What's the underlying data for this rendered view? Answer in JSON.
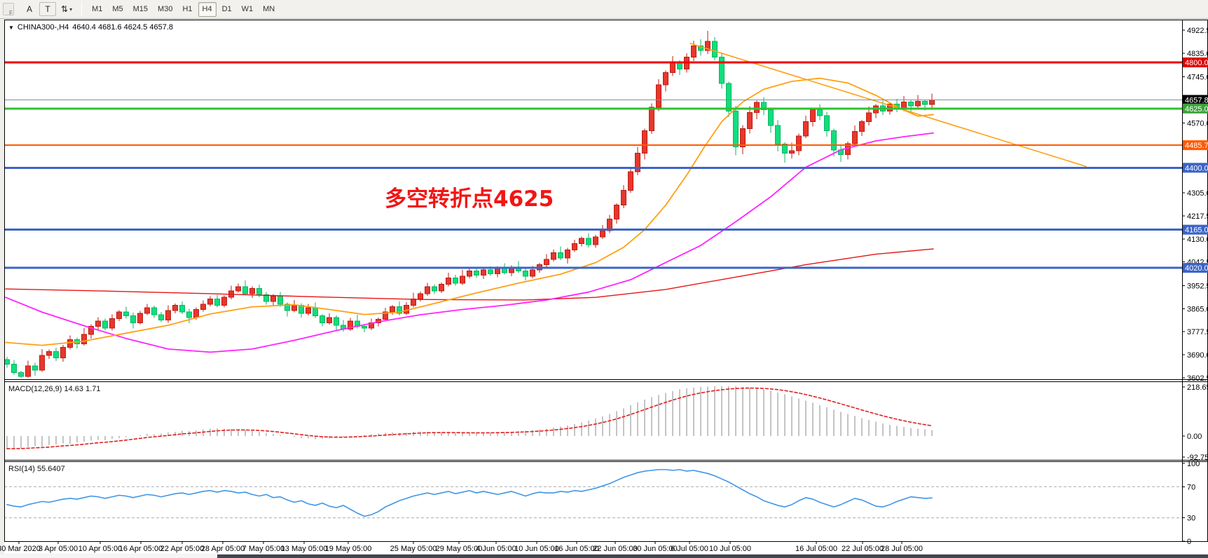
{
  "toolbar": {
    "handle_letter": "F",
    "icon_a": "A",
    "icon_t": "T",
    "icon_swap": "⇅",
    "caret": "▾",
    "timeframes": [
      "M1",
      "M5",
      "M15",
      "M30",
      "H1",
      "H4",
      "D1",
      "W1",
      "MN"
    ],
    "active_timeframe": "H4"
  },
  "chart": {
    "dropdown": "▼",
    "symbol": "CHINA300-,H4",
    "ohlc_text": "4640.4 4681.6 4624.5 4657.8"
  },
  "indicators": {
    "macd": {
      "label": "MACD(12,26,9)",
      "value_main": "14.63",
      "value_signal": "1.71"
    },
    "rsi": {
      "label": "RSI(14)",
      "value": "55.6407"
    }
  },
  "annotation": {
    "text": "多空转折点4625",
    "color": "#F21515"
  },
  "chart_data": {
    "type": "candlestick",
    "title": "CHINA300-,H4",
    "timeframe": "H4",
    "last_ohlc": {
      "open": 4640.4,
      "high": 4681.6,
      "low": 4624.5,
      "close": 4657.8
    },
    "price_axis": {
      "top": 4922.5,
      "bottom": 3602.5,
      "ticks": [
        4922.5,
        4835.0,
        4745.0,
        4570.0,
        4305.0,
        4217.5,
        4130.0,
        4042.5,
        3952.5,
        3865.0,
        3777.5,
        3690.0,
        3602.5
      ]
    },
    "levels": [
      {
        "price": 4800.0,
        "label": "4800.0",
        "color": "#F00000",
        "width": 3,
        "tag": "#E00000"
      },
      {
        "price": 4657.8,
        "label": "4657.8",
        "color": "#7E8C9C",
        "width": 1,
        "tag": "#000000"
      },
      {
        "price": 4625.0,
        "label": "4625.0",
        "color": "#2FC22F",
        "width": 3,
        "tag": "#3AA33A"
      },
      {
        "price": 4485.7,
        "label": "4485.7",
        "color": "#FF5A00",
        "width": 2,
        "tag": "#FF5A00"
      },
      {
        "price": 4400.0,
        "label": "4400.0",
        "color": "#3C64C8",
        "width": 3,
        "tag": "#3C64C8"
      },
      {
        "price": 4165.0,
        "label": "4165.0",
        "color": "#3C64C8",
        "width": 3,
        "tag": "#3C64C8"
      },
      {
        "price": 4020.0,
        "label": "4020.0",
        "color": "#3C64C8",
        "width": 3,
        "tag": "#3C64C8"
      }
    ],
    "colors": {
      "up": "#E8372C",
      "up_stroke": "#BC1E14",
      "down": "#10DF7C",
      "down_stroke": "#09B463",
      "ma_fast": "#FFA013",
      "ma_mid": "#FF22FF",
      "ma_slow": "#E81414",
      "trendline": "#FFA013",
      "macd_hist": "#C4C4C4",
      "macd_signal": "#E02020",
      "rsi_line": "#3E96E8"
    },
    "candles": [
      [
        3672,
        3682,
        3641,
        3655
      ],
      [
        3655,
        3671,
        3614,
        3622
      ],
      [
        3622,
        3629,
        3603,
        3608
      ],
      [
        3608,
        3668,
        3604,
        3648
      ],
      [
        3648,
        3660,
        3610,
        3632
      ],
      [
        3632,
        3712,
        3625,
        3688
      ],
      [
        3688,
        3710,
        3674,
        3702
      ],
      [
        3702,
        3717,
        3666,
        3678
      ],
      [
        3678,
        3728,
        3664,
        3718
      ],
      [
        3718,
        3764,
        3710,
        3748
      ],
      [
        3748,
        3755,
        3714,
        3732
      ],
      [
        3732,
        3792,
        3725,
        3768
      ],
      [
        3768,
        3806,
        3752,
        3798
      ],
      [
        3798,
        3833,
        3786,
        3818
      ],
      [
        3818,
        3828,
        3784,
        3792
      ],
      [
        3792,
        3844,
        3782,
        3828
      ],
      [
        3828,
        3859,
        3818,
        3852
      ],
      [
        3852,
        3872,
        3828,
        3838
      ],
      [
        3838,
        3850,
        3790,
        3812
      ],
      [
        3812,
        3856,
        3805,
        3848
      ],
      [
        3848,
        3883,
        3841,
        3868
      ],
      [
        3868,
        3876,
        3830,
        3842
      ],
      [
        3842,
        3852,
        3814,
        3822
      ],
      [
        3822,
        3878,
        3812,
        3858
      ],
      [
        3858,
        3885,
        3848,
        3878
      ],
      [
        3878,
        3893,
        3845,
        3852
      ],
      [
        3852,
        3864,
        3810,
        3832
      ],
      [
        3832,
        3870,
        3824,
        3862
      ],
      [
        3862,
        3897,
        3854,
        3882
      ],
      [
        3882,
        3912,
        3874,
        3902
      ],
      [
        3902,
        3918,
        3870,
        3878
      ],
      [
        3878,
        3915,
        3870,
        3908
      ],
      [
        3908,
        3952,
        3900,
        3932
      ],
      [
        3932,
        3960,
        3926,
        3948
      ],
      [
        3948,
        3972,
        3915,
        3922
      ],
      [
        3922,
        3950,
        3906,
        3942
      ],
      [
        3942,
        3957,
        3908,
        3918
      ],
      [
        3918,
        3928,
        3880,
        3892
      ],
      [
        3892,
        3920,
        3878,
        3912
      ],
      [
        3912,
        3928,
        3872,
        3882
      ],
      [
        3882,
        3889,
        3836,
        3858
      ],
      [
        3858,
        3898,
        3851,
        3878
      ],
      [
        3878,
        3886,
        3832,
        3848
      ],
      [
        3848,
        3883,
        3840,
        3868
      ],
      [
        3868,
        3888,
        3830,
        3838
      ],
      [
        3838,
        3845,
        3798,
        3812
      ],
      [
        3812,
        3848,
        3805,
        3832
      ],
      [
        3832,
        3839,
        3784,
        3802
      ],
      [
        3802,
        3822,
        3778,
        3788
      ],
      [
        3788,
        3830,
        3781,
        3818
      ],
      [
        3818,
        3842,
        3790,
        3798
      ],
      [
        3798,
        3806,
        3776,
        3792
      ],
      [
        3792,
        3827,
        3784,
        3812
      ],
      [
        3812,
        3832,
        3798,
        3825
      ],
      [
        3825,
        3868,
        3818,
        3852
      ],
      [
        3852,
        3879,
        3842,
        3872
      ],
      [
        3872,
        3892,
        3840,
        3848
      ],
      [
        3848,
        3890,
        3841,
        3878
      ],
      [
        3878,
        3926,
        3870,
        3902
      ],
      [
        3902,
        3930,
        3892,
        3922
      ],
      [
        3922,
        3963,
        3914,
        3948
      ],
      [
        3948,
        3958,
        3920,
        3932
      ],
      [
        3932,
        3965,
        3924,
        3958
      ],
      [
        3958,
        4002,
        3950,
        3982
      ],
      [
        3982,
        3994,
        3952,
        3962
      ],
      [
        3962,
        4012,
        3955,
        3988
      ],
      [
        3988,
        4016,
        3980,
        4008
      ],
      [
        4008,
        4023,
        3982,
        3992
      ],
      [
        3992,
        4022,
        3978,
        4012
      ],
      [
        4012,
        4026,
        3990,
        3998
      ],
      [
        3998,
        4025,
        3984,
        4018
      ],
      [
        4018,
        4038,
        3995,
        4002
      ],
      [
        4002,
        4030,
        3988,
        4022
      ],
      [
        4022,
        4046,
        4001,
        4008
      ],
      [
        4008,
        4016,
        3972,
        3988
      ],
      [
        3988,
        4027,
        3980,
        4012
      ],
      [
        4012,
        4039,
        4002,
        4032
      ],
      [
        4032,
        4072,
        4024,
        4052
      ],
      [
        4052,
        4090,
        4044,
        4078
      ],
      [
        4078,
        4102,
        4050,
        4058
      ],
      [
        4058,
        4096,
        4036,
        4088
      ],
      [
        4088,
        4127,
        4080,
        4112
      ],
      [
        4112,
        4139,
        4102,
        4132
      ],
      [
        4132,
        4152,
        4098,
        4108
      ],
      [
        4108,
        4146,
        4096,
        4138
      ],
      [
        4138,
        4182,
        4130,
        4162
      ],
      [
        4162,
        4221,
        4152,
        4205
      ],
      [
        4205,
        4265,
        4188,
        4258
      ],
      [
        4258,
        4335,
        4247,
        4315
      ],
      [
        4315,
        4397,
        4305,
        4385
      ],
      [
        4385,
        4479,
        4371,
        4455
      ],
      [
        4455,
        4548,
        4432,
        4540
      ],
      [
        4540,
        4645,
        4528,
        4630
      ],
      [
        4630,
        4736,
        4615,
        4715
      ],
      [
        4715,
        4769,
        4690,
        4762
      ],
      [
        4762,
        4824,
        4748,
        4800
      ],
      [
        4800,
        4808,
        4752,
        4775
      ],
      [
        4775,
        4835,
        4762,
        4820
      ],
      [
        4820,
        4882,
        4806,
        4862
      ],
      [
        4862,
        4888,
        4825,
        4845
      ],
      [
        4845,
        4920,
        4832,
        4880
      ],
      [
        4880,
        4896,
        4808,
        4820
      ],
      [
        4820,
        4838,
        4700,
        4720
      ],
      [
        4720,
        4727,
        4592,
        4615
      ],
      [
        4615,
        4635,
        4448,
        4480
      ],
      [
        4480,
        4562,
        4452,
        4548
      ],
      [
        4548,
        4634,
        4530,
        4610
      ],
      [
        4610,
        4655,
        4585,
        4648
      ],
      [
        4648,
        4668,
        4600,
        4620
      ],
      [
        4620,
        4627,
        4532,
        4560
      ],
      [
        4560,
        4580,
        4462,
        4490
      ],
      [
        4490,
        4497,
        4420,
        4455
      ],
      [
        4455,
        4495,
        4435,
        4465
      ],
      [
        4465,
        4530,
        4448,
        4520
      ],
      [
        4520,
        4598,
        4512,
        4575
      ],
      [
        4575,
        4627,
        4556,
        4620
      ],
      [
        4620,
        4640,
        4580,
        4598
      ],
      [
        4598,
        4612,
        4518,
        4540
      ],
      [
        4540,
        4548,
        4444,
        4468
      ],
      [
        4468,
        4488,
        4422,
        4450
      ],
      [
        4450,
        4500,
        4431,
        4492
      ],
      [
        4492,
        4560,
        4482,
        4538
      ],
      [
        4538,
        4582,
        4520,
        4575
      ],
      [
        4575,
        4632,
        4561,
        4608
      ],
      [
        4608,
        4642,
        4588,
        4635
      ],
      [
        4635,
        4655,
        4601,
        4615
      ],
      [
        4615,
        4648,
        4602,
        4642
      ],
      [
        4642,
        4662,
        4611,
        4625
      ],
      [
        4625,
        4672,
        4615,
        4650
      ],
      [
        4650,
        4657,
        4612,
        4635
      ],
      [
        4635,
        4676,
        4625,
        4652
      ],
      [
        4652,
        4658,
        4618,
        4640
      ],
      [
        4640.4,
        4681.6,
        4624.5,
        4657.8
      ]
    ],
    "ma_orange": [
      [
        8,
        3737
      ],
      [
        60,
        3726
      ],
      [
        120,
        3742
      ],
      [
        180,
        3772
      ],
      [
        240,
        3802
      ],
      [
        300,
        3845
      ],
      [
        360,
        3872
      ],
      [
        420,
        3880
      ],
      [
        470,
        3862
      ],
      [
        520,
        3843
      ],
      [
        570,
        3852
      ],
      [
        620,
        3885
      ],
      [
        680,
        3925
      ],
      [
        740,
        3962
      ],
      [
        800,
        3996
      ],
      [
        850,
        4040
      ],
      [
        890,
        4098
      ],
      [
        920,
        4165
      ],
      [
        950,
        4258
      ],
      [
        980,
        4372
      ],
      [
        1005,
        4478
      ],
      [
        1030,
        4575
      ],
      [
        1060,
        4650
      ],
      [
        1090,
        4698
      ],
      [
        1130,
        4728
      ],
      [
        1170,
        4740
      ],
      [
        1210,
        4722
      ],
      [
        1250,
        4675
      ],
      [
        1285,
        4625
      ],
      [
        1310,
        4596
      ],
      [
        1332,
        4602
      ]
    ],
    "ma_magenta": [
      [
        8,
        3908
      ],
      [
        60,
        3852
      ],
      [
        120,
        3800
      ],
      [
        180,
        3752
      ],
      [
        240,
        3712
      ],
      [
        300,
        3700
      ],
      [
        360,
        3712
      ],
      [
        420,
        3745
      ],
      [
        480,
        3782
      ],
      [
        540,
        3815
      ],
      [
        600,
        3842
      ],
      [
        660,
        3862
      ],
      [
        720,
        3878
      ],
      [
        780,
        3898
      ],
      [
        840,
        3928
      ],
      [
        900,
        3975
      ],
      [
        950,
        4040
      ],
      [
        1000,
        4105
      ],
      [
        1050,
        4195
      ],
      [
        1100,
        4290
      ],
      [
        1150,
        4402
      ],
      [
        1200,
        4468
      ],
      [
        1250,
        4502
      ],
      [
        1290,
        4518
      ],
      [
        1332,
        4532
      ]
    ],
    "ma_red": [
      [
        8,
        3940
      ],
      [
        150,
        3932
      ],
      [
        300,
        3922
      ],
      [
        450,
        3910
      ],
      [
        600,
        3900
      ],
      [
        750,
        3898
      ],
      [
        850,
        3908
      ],
      [
        950,
        3938
      ],
      [
        1050,
        3985
      ],
      [
        1150,
        4032
      ],
      [
        1250,
        4072
      ],
      [
        1332,
        4092
      ]
    ],
    "trendline": [
      [
        985,
        4872
      ],
      [
        1550,
        4405
      ]
    ],
    "macd": {
      "ticks": [
        218.65,
        0.0,
        -92.75
      ],
      "max": 218.65,
      "min": -92.75,
      "hist": [
        -56,
        -52,
        -54,
        -48,
        -44,
        -46,
        -40,
        -36,
        -32,
        -34,
        -28,
        -24,
        -20,
        -16,
        -18,
        -12,
        -8,
        -4,
        2,
        6,
        10,
        8,
        12,
        16,
        20,
        24,
        22,
        26,
        30,
        33,
        35,
        34,
        32,
        30,
        27,
        24,
        20,
        15,
        10,
        5,
        0,
        -4,
        -8,
        -11,
        -13,
        -12,
        -10,
        -7,
        -4,
        -1,
        2,
        5,
        8,
        11,
        14,
        16,
        15,
        17,
        19,
        21,
        20,
        18,
        17,
        16,
        15,
        14,
        13,
        14,
        15,
        16,
        17,
        18,
        20,
        22,
        24,
        27,
        30,
        34,
        38,
        43,
        48,
        54,
        61,
        69,
        78,
        88,
        99,
        111,
        124,
        137,
        150,
        162,
        173,
        183,
        192,
        200,
        207,
        213,
        215,
        218,
        220,
        221,
        222,
        222,
        221,
        219,
        216,
        212,
        207,
        201,
        194,
        186,
        177,
        168,
        158,
        148,
        138,
        128,
        118,
        108,
        98,
        89,
        80,
        72,
        64,
        57,
        51,
        46,
        41,
        37,
        33,
        30,
        27
      ]
    },
    "rsi": {
      "ticks": [
        100,
        70,
        30,
        0
      ],
      "dashed_levels": [
        70,
        30
      ],
      "values": [
        47,
        45,
        44,
        47,
        49,
        51,
        50,
        52,
        54,
        55,
        54,
        56,
        58,
        57,
        55,
        57,
        59,
        58,
        56,
        58,
        60,
        59,
        57,
        59,
        61,
        62,
        60,
        62,
        64,
        65,
        63,
        65,
        64,
        62,
        63,
        60,
        58,
        60,
        56,
        57,
        53,
        50,
        52,
        48,
        46,
        49,
        45,
        43,
        46,
        41,
        36,
        32,
        34,
        38,
        44,
        48,
        52,
        55,
        58,
        60,
        62,
        60,
        62,
        64,
        61,
        63,
        65,
        62,
        64,
        62,
        60,
        62,
        64,
        61,
        58,
        61,
        63,
        62,
        62,
        64,
        63,
        65,
        64,
        66,
        68,
        71,
        74,
        78,
        82,
        85,
        88,
        90,
        91,
        92,
        92,
        91,
        92,
        90,
        91,
        89,
        87,
        84,
        80,
        76,
        71,
        66,
        61,
        57,
        52,
        49,
        46,
        44,
        47,
        52,
        56,
        54,
        50,
        47,
        44,
        47,
        51,
        55,
        53,
        49,
        45,
        44,
        47,
        51,
        54,
        57,
        56,
        55,
        55.6
      ]
    },
    "dates": [
      [
        "30 Mar 2020",
        27
      ],
      [
        "3 Apr 05:00",
        83
      ],
      [
        "10 Apr 05:00",
        143
      ],
      [
        "16 Apr 05:00",
        201
      ],
      [
        "22 Apr 05:00",
        260
      ],
      [
        "28 Apr 05:00",
        318
      ],
      [
        "7 May 05:00",
        376
      ],
      [
        "13 May 05:00",
        434
      ],
      [
        "19 May 05:00",
        497
      ],
      [
        "25 May 05:00",
        590
      ],
      [
        "29 May 05:00",
        655
      ],
      [
        "4 Jun 05:00",
        708
      ],
      [
        "10 Jun 05:00",
        766
      ],
      [
        "16 Jun 05:00",
        823
      ],
      [
        "22 Jun 05:00",
        878
      ],
      [
        "30 Jun 05:00",
        935
      ],
      [
        "6 Jul 05:00",
        984
      ],
      [
        "10 Jul 05:00",
        1042
      ],
      [
        "16 Jul 05:00",
        1165
      ],
      [
        "22 Jul 05:00",
        1231
      ],
      [
        "28 Jul 05:00",
        1287
      ]
    ]
  }
}
